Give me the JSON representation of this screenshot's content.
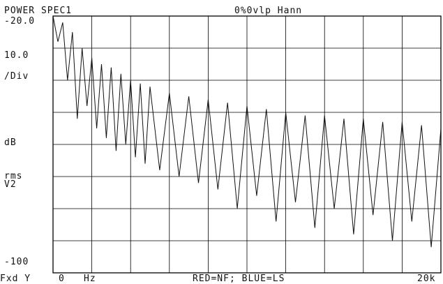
{
  "header": {
    "left_title": "POWER SPEC1",
    "right_title": "0%0vlp Hann"
  },
  "y_axis": {
    "top_label": "-20.0",
    "scale_value": "10.0",
    "scale_unit": "/Div",
    "unit_db": "dB",
    "unit_rms": "rms",
    "unit_v2": "V2",
    "bottom_label": "-100"
  },
  "x_axis": {
    "prefix": "Fxd Y",
    "start": "0",
    "unit": "Hz",
    "legend": "RED=NF; BLUE=LS",
    "end": "20k"
  },
  "chart_data": {
    "type": "line",
    "title": "POWER SPEC1",
    "subtitle": "0%0vlp Hann",
    "xlabel": "Hz",
    "ylabel": "dB rms V2",
    "xlim": [
      0,
      20000
    ],
    "ylim": [
      -100,
      -20
    ],
    "grid": true,
    "series": [
      {
        "x": [
          0,
          250,
          500,
          750,
          1000,
          1250,
          1500,
          1750,
          2000,
          2250,
          2500,
          2750,
          3000,
          3250,
          3500,
          3750,
          4000,
          4250,
          4500,
          4750,
          5000,
          5500,
          6000,
          6500,
          7000,
          7500,
          8000,
          8500,
          9000,
          9500,
          10000,
          10500,
          11000,
          11500,
          12000,
          12500,
          13000,
          13500,
          14000,
          14500,
          15000,
          15500,
          16000,
          16500,
          17000,
          17500,
          18000,
          18500,
          19000,
          19500,
          20000
        ],
        "values": [
          -20,
          -28,
          -22,
          -40,
          -25,
          -52,
          -30,
          -48,
          -33,
          -55,
          -35,
          -58,
          -36,
          -62,
          -38,
          -60,
          -40,
          -64,
          -41,
          -66,
          -42,
          -68,
          -44,
          -70,
          -45,
          -72,
          -46,
          -74,
          -47,
          -80,
          -48,
          -76,
          -49,
          -84,
          -50,
          -78,
          -51,
          -86,
          -51,
          -80,
          -52,
          -88,
          -52,
          -82,
          -53,
          -90,
          -53,
          -84,
          -54,
          -92,
          -55
        ]
      }
    ]
  }
}
